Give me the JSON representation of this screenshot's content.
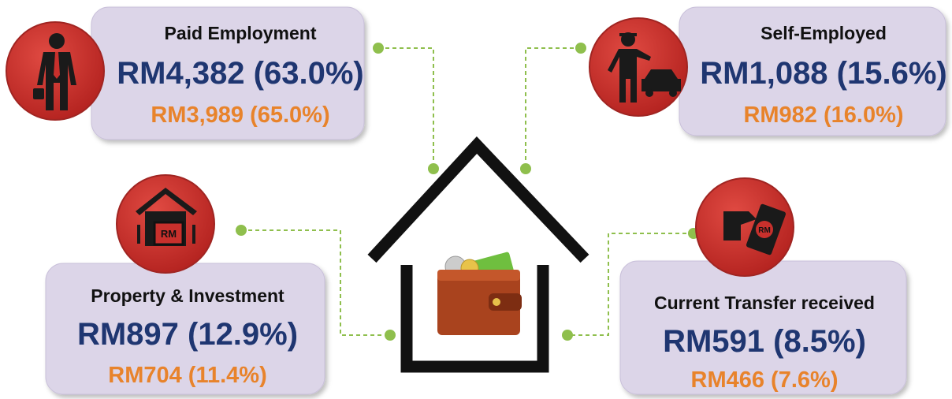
{
  "cards": [
    {
      "title": "Paid Employment",
      "primary": "RM4,382 (63.0%)",
      "secondary": "RM3,989 (65.0%)"
    },
    {
      "title": "Self-Employed",
      "primary": "RM1,088 (15.6%)",
      "secondary": "RM982 (16.0%)"
    },
    {
      "title": "Property & Investment",
      "primary": "RM897 (12.9%)",
      "secondary": "RM704 (11.4%)"
    },
    {
      "title": "Current Transfer received",
      "primary": "RM591 (8.5%)",
      "secondary": "RM466 (7.6%)"
    }
  ]
}
